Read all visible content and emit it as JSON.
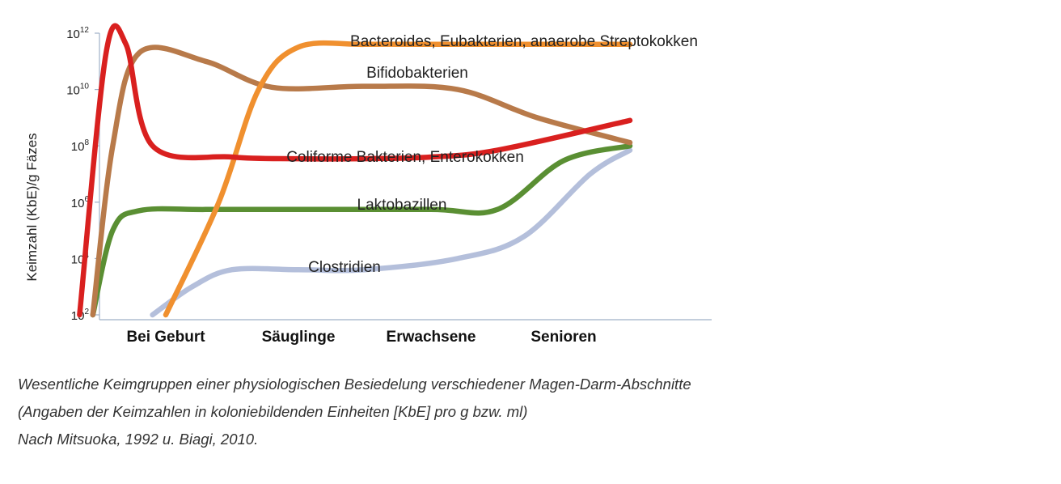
{
  "chart_data": {
    "type": "line",
    "title": "",
    "xlabel": "",
    "ylabel": "Keimzahl (KbE)/g Fäzes",
    "y_scale": "log",
    "ylim": [
      100,
      1000000000000
    ],
    "y_ticks": [
      {
        "base": "10",
        "exp": "12",
        "value": 1000000000000
      },
      {
        "base": "10",
        "exp": "10",
        "value": 10000000000
      },
      {
        "base": "10",
        "exp": "8",
        "value": 100000000
      },
      {
        "base": "10",
        "exp": "6",
        "value": 1000000
      },
      {
        "base": "10",
        "exp": "4",
        "value": 10000
      },
      {
        "base": "10",
        "exp": "2",
        "value": 100
      }
    ],
    "categories": [
      "Bei Geburt",
      "Säuglinge",
      "Erwachsene",
      "Senioren"
    ],
    "grid": false,
    "series": [
      {
        "name": "Bacteroides, Eubakterien, anaerobe Streptokokken",
        "color": "#f0902f",
        "x": [
          1.0,
          1.4,
          1.7,
          2.0,
          2.5,
          3.0,
          3.5,
          4.0,
          4.5
        ],
        "y": [
          100,
          1000000,
          10000000000,
          320000000000,
          400000000000,
          400000000000,
          400000000000,
          400000000000,
          400000000000
        ]
      },
      {
        "name": "Bifidobakterien",
        "color": "#b87a4a",
        "x": [
          0.45,
          0.6,
          0.8,
          1.3,
          1.8,
          2.5,
          3.2,
          3.8,
          4.5
        ],
        "y": [
          100,
          100000000,
          200000000000,
          100000000000,
          12000000000,
          13000000000,
          10000000000,
          1000000000,
          130000000
        ]
      },
      {
        "name": "Coliforme Bakterien, Enterokokken",
        "color": "#d9201f",
        "x": [
          0.35,
          0.55,
          0.7,
          0.9,
          1.5,
          2.0,
          2.5,
          3.0,
          3.5,
          4.5
        ],
        "y": [
          100,
          200000000000,
          400000000000,
          100000000,
          40000000,
          35000000,
          35000000,
          40000000,
          70000000,
          800000000
        ]
      },
      {
        "name": "Laktobazillen",
        "color": "#5a8f33",
        "x": [
          0.45,
          0.6,
          0.8,
          1.3,
          2.0,
          3.0,
          3.5,
          4.0,
          4.5
        ],
        "y": [
          100,
          100000,
          500000,
          550000,
          550000,
          550000,
          550000,
          30000000,
          100000000
        ]
      },
      {
        "name": "Clostridien",
        "color": "#b4bfdb",
        "x": [
          0.9,
          1.2,
          1.5,
          2.0,
          2.5,
          3.2,
          3.7,
          4.2,
          4.5
        ],
        "y": [
          100,
          1000,
          4000,
          4000,
          4000,
          10000,
          60000,
          10000000,
          70000000
        ]
      }
    ]
  },
  "caption": {
    "line1": "Wesentliche Keimgruppen einer physiologischen Besiedelung verschiedener Magen-Darm-Abschnitte",
    "line2": "(Angaben der Keimzahlen in koloniebildenden Einheiten [KbE] pro g bzw. ml)",
    "line3": "Nach Mitsuoka, 1992 u. Biagi, 2010."
  }
}
